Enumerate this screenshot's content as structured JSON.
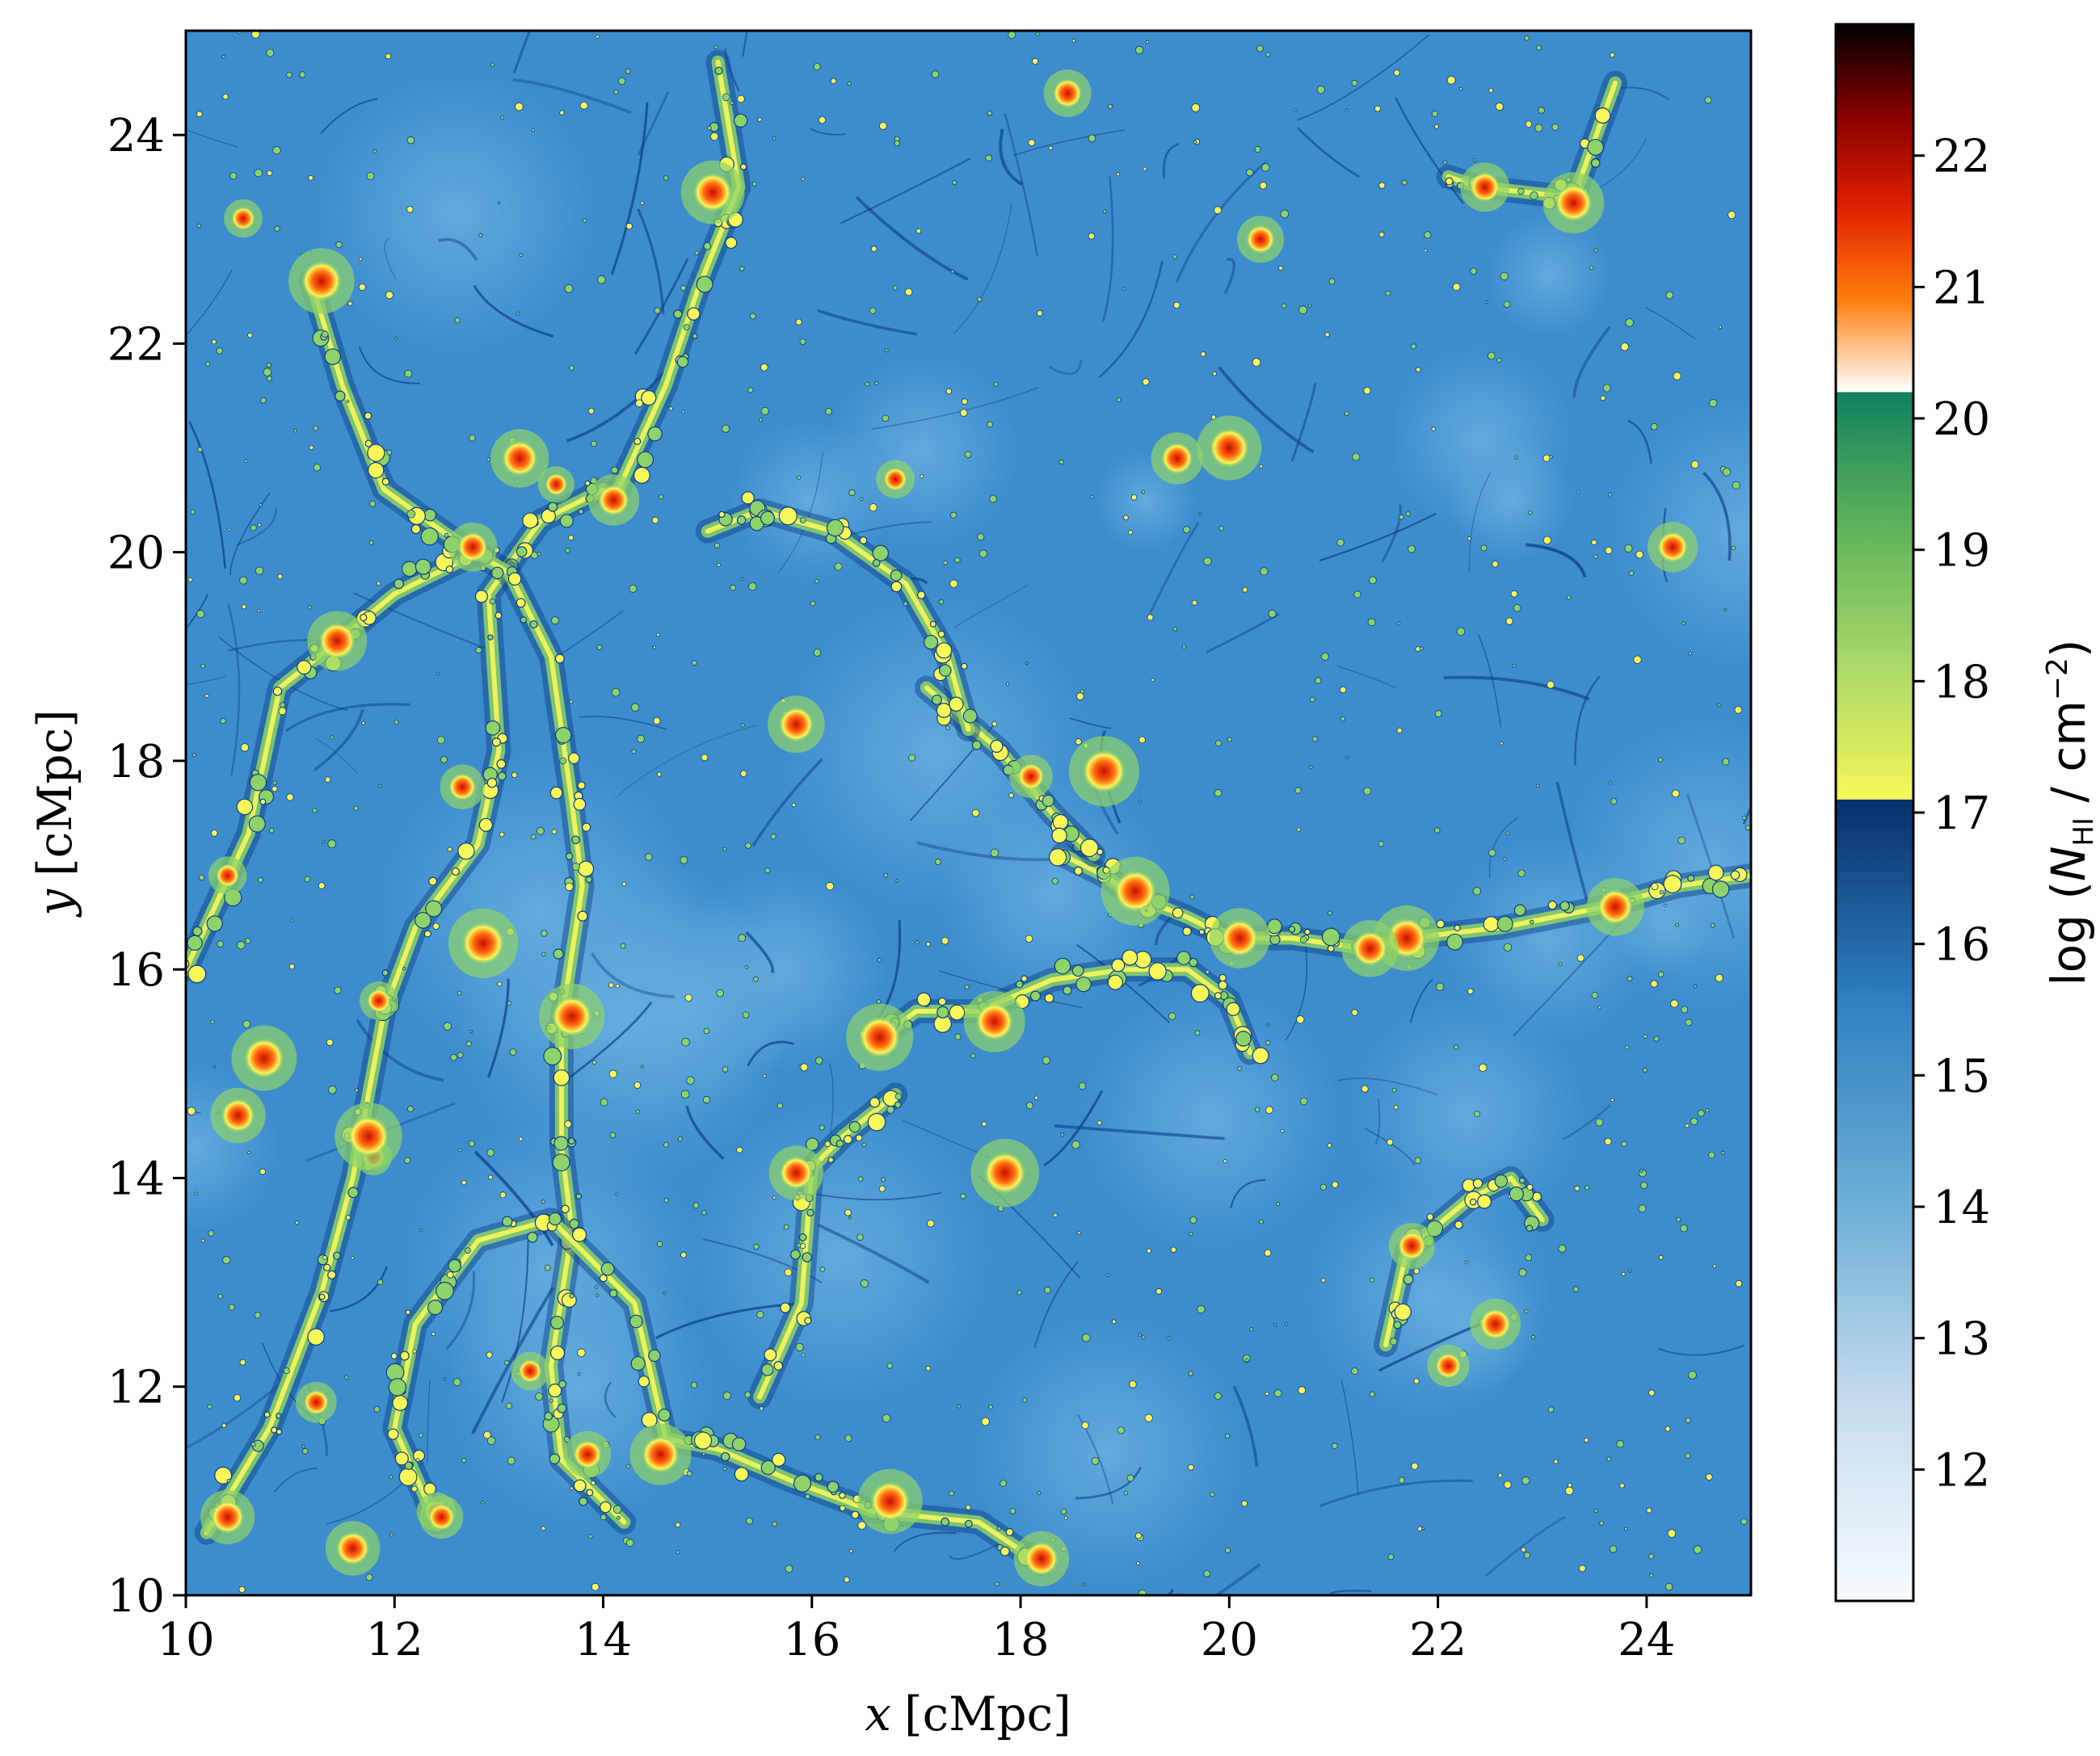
{
  "chart_data": {
    "type": "heatmap",
    "title": "",
    "xlabel_var": "x",
    "xlabel_unit": "[cMpc]",
    "ylabel_var": "y",
    "ylabel_unit": "[cMpc]",
    "xlim": [
      10,
      25
    ],
    "ylim": [
      10,
      25
    ],
    "x_ticks": [
      "10",
      "12",
      "14",
      "16",
      "18",
      "20",
      "22",
      "24"
    ],
    "y_ticks": [
      "10",
      "12",
      "14",
      "16",
      "18",
      "20",
      "22",
      "24"
    ],
    "colorbar": {
      "label_prefix": "log (",
      "label_var": "N",
      "label_sub": "HI",
      "label_unit": " / cm",
      "label_exp": "−2",
      "label_suffix": ")",
      "range": [
        11,
        23
      ],
      "ticks": [
        "12",
        "13",
        "14",
        "15",
        "16",
        "17",
        "18",
        "19",
        "20",
        "21",
        "22"
      ],
      "segments": [
        {
          "from": 11,
          "to": 17.1,
          "colors": [
            "#f7fbff",
            "#c6dbef",
            "#6baed6",
            "#2f7fc1",
            "#08306b"
          ]
        },
        {
          "from": 17.1,
          "to": 20.2,
          "colors": [
            "#f7f75a",
            "#a9d86a",
            "#5fb35a",
            "#128060"
          ]
        },
        {
          "from": 20.2,
          "to": 23,
          "colors": [
            "#ffffff",
            "#ff7f0e",
            "#e02000",
            "#8a0000",
            "#000000"
          ]
        }
      ]
    },
    "colors": {
      "background_field": "#3d8ccd",
      "void": "#5ba3d9",
      "filament_low": "#0b3d85",
      "filament_mid": "#8ed36a",
      "filament_high": "#f7f75a",
      "core": "#e23a17"
    },
    "structures": [
      {
        "name": "filament",
        "points": [
          [
            10.2,
            10.6
          ],
          [
            10.8,
            11.6
          ],
          [
            11.3,
            12.9
          ],
          [
            11.6,
            14.0
          ],
          [
            11.9,
            15.6
          ],
          [
            12.2,
            16.4
          ],
          [
            12.8,
            17.2
          ],
          [
            13.0,
            18.1
          ],
          [
            12.9,
            19.6
          ],
          [
            13.4,
            20.3
          ],
          [
            14.0,
            20.6
          ]
        ]
      },
      {
        "name": "filament",
        "points": [
          [
            10.0,
            16.0
          ],
          [
            10.6,
            17.3
          ],
          [
            10.9,
            18.7
          ],
          [
            11.4,
            19.1
          ],
          [
            12.0,
            19.6
          ],
          [
            12.8,
            20.0
          ]
        ]
      },
      {
        "name": "filament",
        "points": [
          [
            11.2,
            22.6
          ],
          [
            11.5,
            21.6
          ],
          [
            11.9,
            20.6
          ],
          [
            12.6,
            20.1
          ],
          [
            13.1,
            19.8
          ],
          [
            13.5,
            19.0
          ],
          [
            13.7,
            17.6
          ],
          [
            13.8,
            16.8
          ],
          [
            13.6,
            15.5
          ],
          [
            13.6,
            14.3
          ],
          [
            13.7,
            13.5
          ],
          [
            13.5,
            12.2
          ],
          [
            13.6,
            11.3
          ],
          [
            14.2,
            10.7
          ]
        ]
      },
      {
        "name": "filament",
        "points": [
          [
            14.1,
            20.5
          ],
          [
            14.6,
            21.6
          ],
          [
            14.9,
            22.5
          ],
          [
            15.3,
            23.5
          ],
          [
            15.1,
            24.7
          ]
        ]
      },
      {
        "name": "filament",
        "points": [
          [
            18.4,
            17.1
          ],
          [
            18.8,
            16.9
          ],
          [
            19.1,
            16.7
          ],
          [
            19.6,
            16.5
          ],
          [
            20.0,
            16.3
          ],
          [
            20.6,
            16.3
          ],
          [
            21.3,
            16.2
          ],
          [
            21.7,
            16.3
          ],
          [
            22.6,
            16.4
          ],
          [
            23.6,
            16.6
          ],
          [
            24.3,
            16.8
          ],
          [
            25.0,
            16.9
          ]
        ]
      },
      {
        "name": "filament",
        "points": [
          [
            17.1,
            18.7
          ],
          [
            17.8,
            18.1
          ],
          [
            18.3,
            17.5
          ],
          [
            18.7,
            17.1
          ]
        ]
      },
      {
        "name": "filament",
        "points": [
          [
            16.6,
            15.3
          ],
          [
            17.0,
            15.6
          ],
          [
            17.6,
            15.6
          ],
          [
            18.3,
            15.9
          ],
          [
            19.0,
            16.0
          ],
          [
            19.6,
            16.0
          ],
          [
            20.0,
            15.7
          ],
          [
            20.2,
            15.2
          ]
        ]
      },
      {
        "name": "filament",
        "points": [
          [
            12.4,
            10.7
          ],
          [
            12.0,
            11.6
          ],
          [
            12.2,
            12.6
          ],
          [
            12.8,
            13.4
          ],
          [
            13.5,
            13.6
          ],
          [
            14.3,
            12.8
          ],
          [
            14.6,
            11.5
          ],
          [
            15.1,
            11.4
          ],
          [
            15.8,
            11.1
          ],
          [
            16.6,
            10.8
          ],
          [
            17.6,
            10.7
          ],
          [
            18.2,
            10.3
          ]
        ]
      },
      {
        "name": "filament",
        "points": [
          [
            15.5,
            11.9
          ],
          [
            15.9,
            12.8
          ],
          [
            16.0,
            14.1
          ],
          [
            16.3,
            14.4
          ],
          [
            16.8,
            14.8
          ]
        ]
      },
      {
        "name": "filament",
        "points": [
          [
            21.5,
            12.4
          ],
          [
            21.7,
            13.3
          ],
          [
            22.3,
            13.8
          ],
          [
            22.7,
            14.0
          ],
          [
            23.0,
            13.6
          ]
        ]
      },
      {
        "name": "filament",
        "points": [
          [
            22.1,
            23.6
          ],
          [
            22.4,
            23.5
          ],
          [
            23.3,
            23.4
          ],
          [
            23.7,
            24.5
          ]
        ]
      },
      {
        "name": "filament",
        "points": [
          [
            15.0,
            20.2
          ],
          [
            15.5,
            20.4
          ],
          [
            16.2,
            20.2
          ],
          [
            16.9,
            19.7
          ],
          [
            17.3,
            19.0
          ],
          [
            17.5,
            18.3
          ]
        ]
      }
    ],
    "cores": [
      [
        12.75,
        20.05
      ],
      [
        11.85,
        15.7
      ],
      [
        11.25,
        11.85
      ],
      [
        12.4,
        10.8
      ],
      [
        13.3,
        12.15
      ],
      [
        13.85,
        11.35
      ],
      [
        14.55,
        11.35
      ],
      [
        19.1,
        16.75
      ],
      [
        21.7,
        16.3
      ],
      [
        21.35,
        16.2
      ],
      [
        23.7,
        16.6
      ],
      [
        22.45,
        23.5
      ],
      [
        23.3,
        23.35
      ],
      [
        18.8,
        17.9
      ],
      [
        17.75,
        15.5
      ],
      [
        16.65,
        15.35
      ],
      [
        11.45,
        19.15
      ],
      [
        12.65,
        17.75
      ],
      [
        13.55,
        20.65
      ],
      [
        10.4,
        10.75
      ],
      [
        11.8,
        14.2
      ],
      [
        11.75,
        14.4
      ],
      [
        15.85,
        14.05
      ],
      [
        17.85,
        14.05
      ],
      [
        18.2,
        10.35
      ],
      [
        11.6,
        10.45
      ],
      [
        12.45,
        10.75
      ],
      [
        20.1,
        16.3
      ],
      [
        12.85,
        16.25
      ],
      [
        13.7,
        15.55
      ],
      [
        18.45,
        24.4
      ],
      [
        15.85,
        18.35
      ],
      [
        18.1,
        17.85
      ],
      [
        19.5,
        20.9
      ],
      [
        20.0,
        21.0
      ],
      [
        20.3,
        23.0
      ],
      [
        22.1,
        12.2
      ],
      [
        22.55,
        12.6
      ],
      [
        13.2,
        20.9
      ],
      [
        14.1,
        20.5
      ],
      [
        10.5,
        14.6
      ],
      [
        10.4,
        16.9
      ],
      [
        11.3,
        22.6
      ],
      [
        10.55,
        23.2
      ],
      [
        24.25,
        20.05
      ],
      [
        21.75,
        13.35
      ],
      [
        15.05,
        23.45
      ],
      [
        16.8,
        20.7
      ],
      [
        16.75,
        10.9
      ],
      [
        10.75,
        15.15
      ]
    ]
  }
}
